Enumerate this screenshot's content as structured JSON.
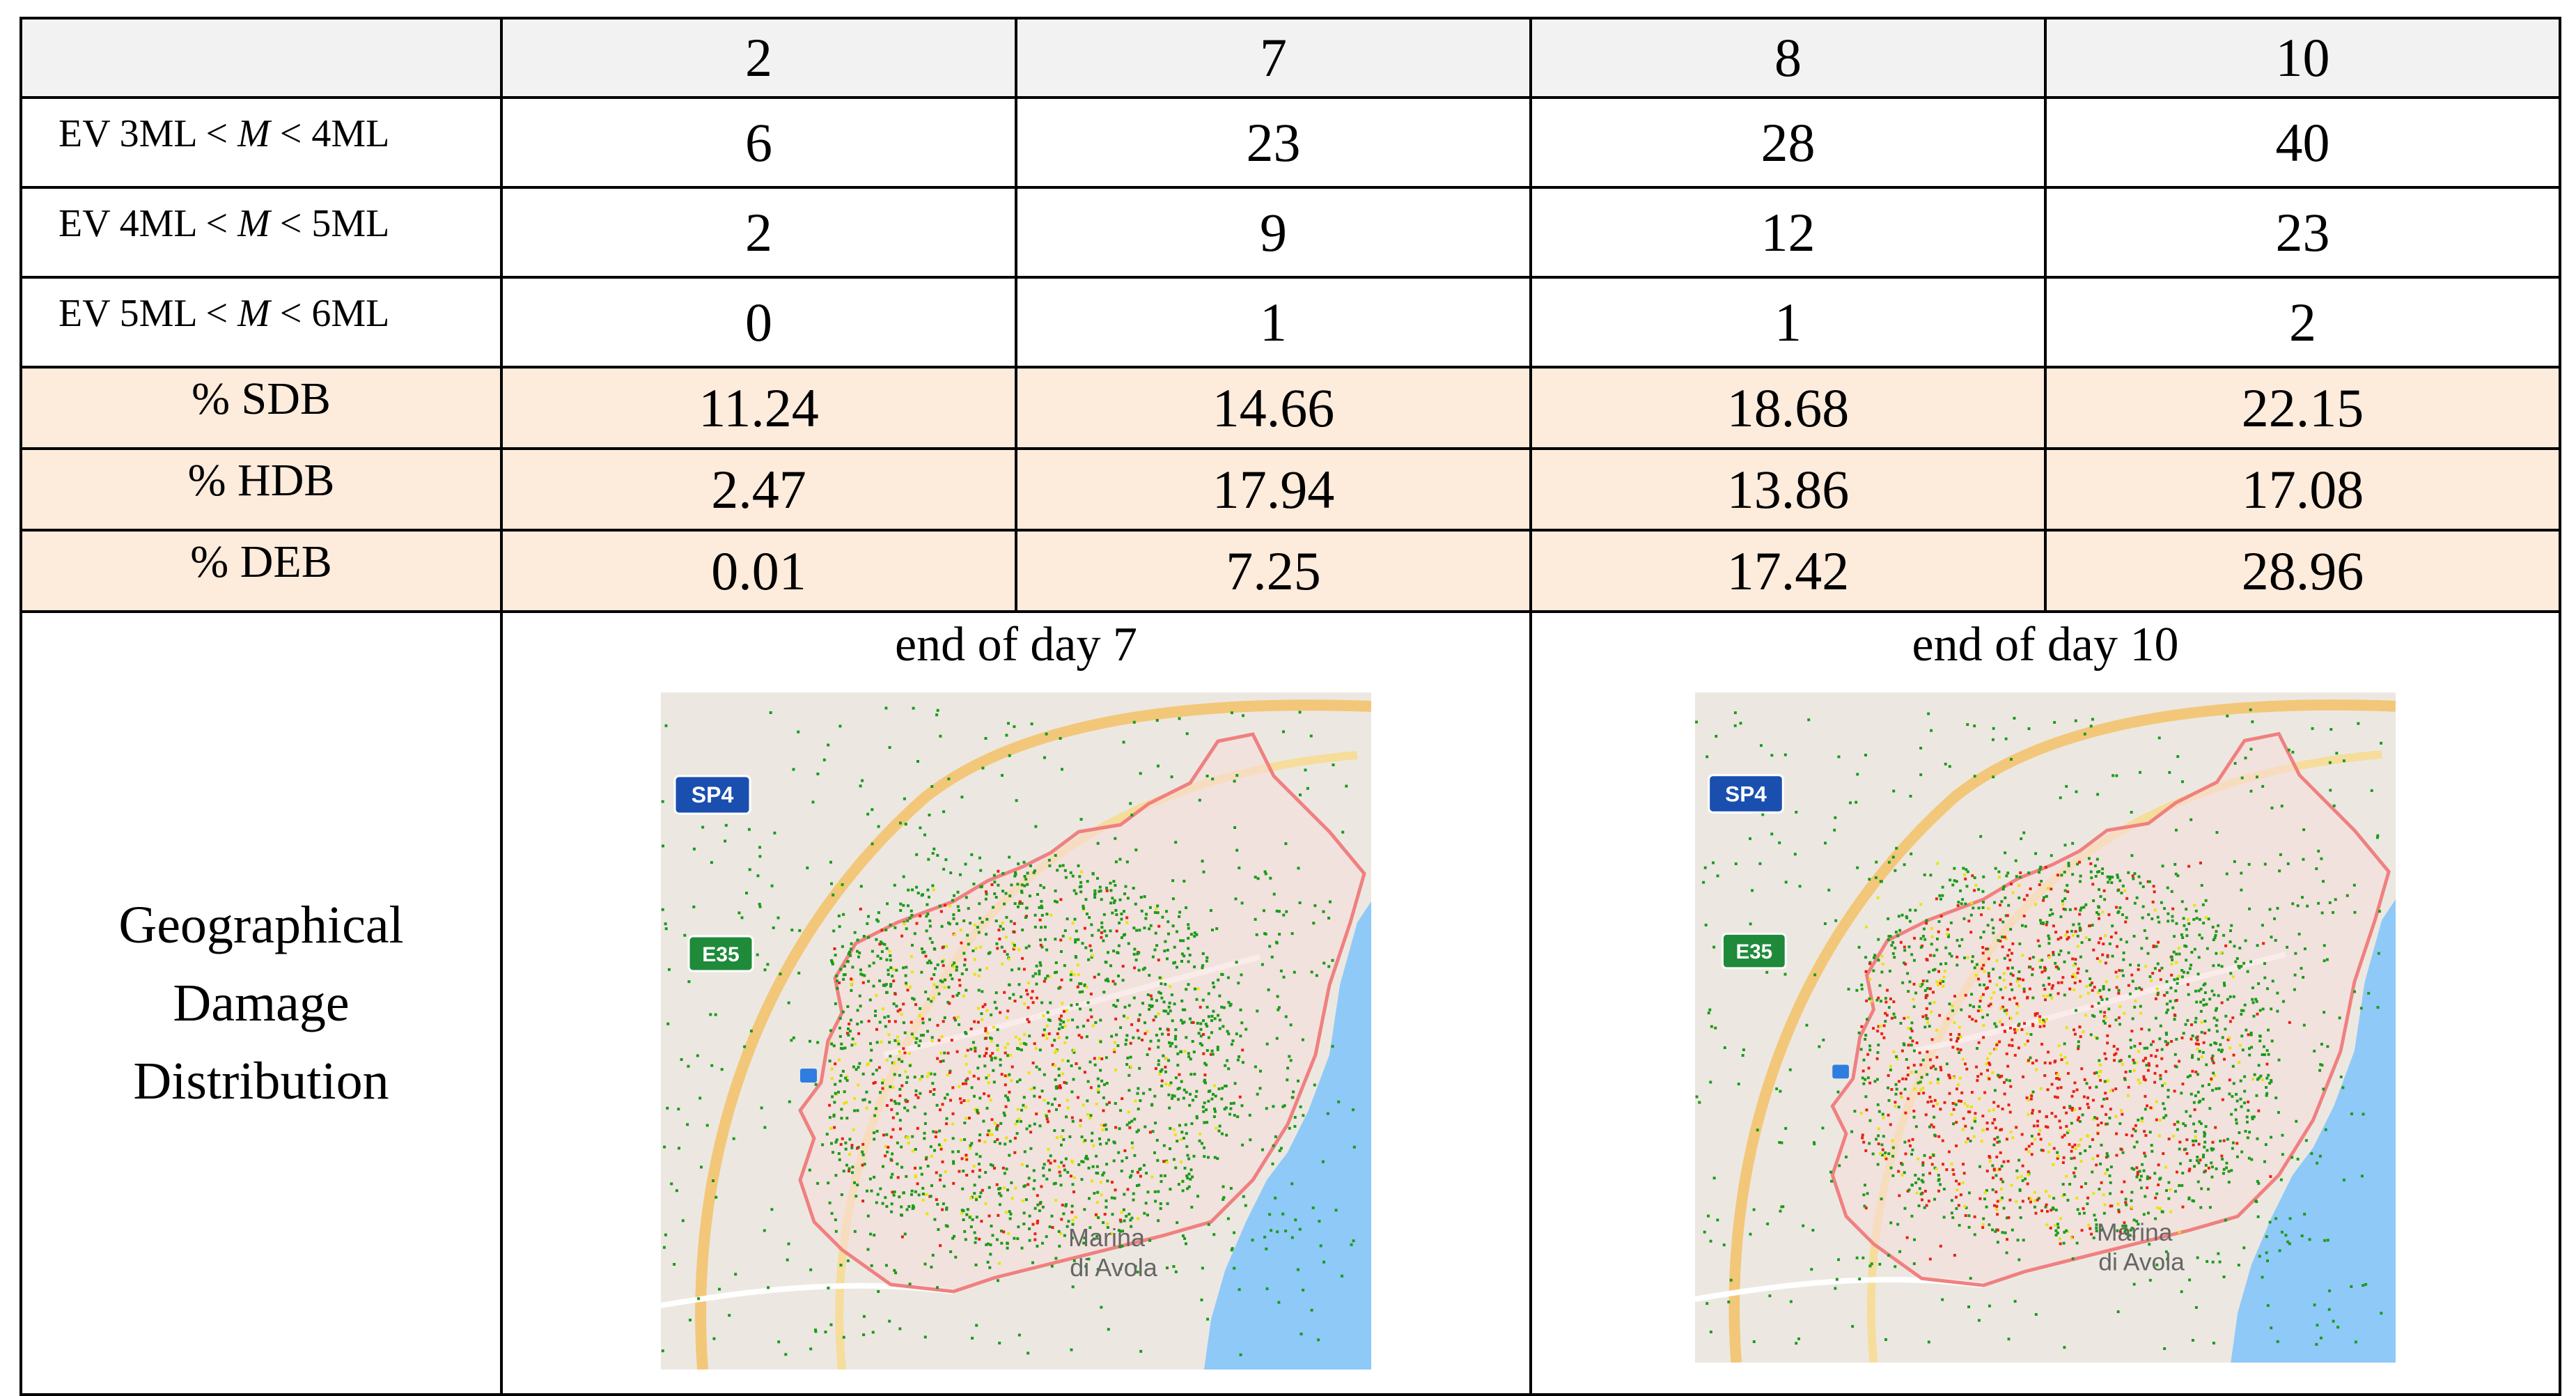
{
  "header": [
    "",
    "2",
    "7",
    "8",
    "10"
  ],
  "ev_rows": [
    {
      "label_pre": "EV 3ML < ",
      "label_m": "M",
      "label_post": " < 4ML",
      "values": [
        "6",
        "23",
        "28",
        "40"
      ]
    },
    {
      "label_pre": "EV 4ML < ",
      "label_m": "M",
      "label_post": " < 5ML",
      "values": [
        "2",
        "9",
        "12",
        "23"
      ]
    },
    {
      "label_pre": "EV 5ML < ",
      "label_m": "M",
      "label_post": " < 6ML",
      "values": [
        "0",
        "1",
        "1",
        "2"
      ]
    }
  ],
  "pct_rows": [
    {
      "label": "% SDB",
      "values": [
        "11.24",
        "14.66",
        "18.68",
        "22.15"
      ]
    },
    {
      "label": "% HDB",
      "values": [
        "2.47",
        "17.94",
        "13.86",
        "17.08"
      ]
    },
    {
      "label": "% DEB",
      "values": [
        "0.01",
        "7.25",
        "17.42",
        "28.96"
      ]
    }
  ],
  "geo": {
    "label_lines": [
      "Geographical",
      "Damage",
      "Distribution"
    ],
    "maps": [
      {
        "title": "end of day 7",
        "road1": "SP4",
        "road2": "E35",
        "place1": "Marina",
        "place2": "di Avola"
      },
      {
        "title": "end of day 10",
        "road1": "SP4",
        "road2": "E35",
        "place1": "Marina",
        "place2": "di Avola"
      }
    ]
  },
  "colors": {
    "header_bg": "#f2f2f2",
    "pct_bg": "#fdebdc",
    "sea": "#8fc9f7",
    "land": "#ece8e1",
    "boundary": "#f08080",
    "green": "#1a9b1a",
    "yellow": "#e6e600",
    "red": "#e8210f"
  }
}
